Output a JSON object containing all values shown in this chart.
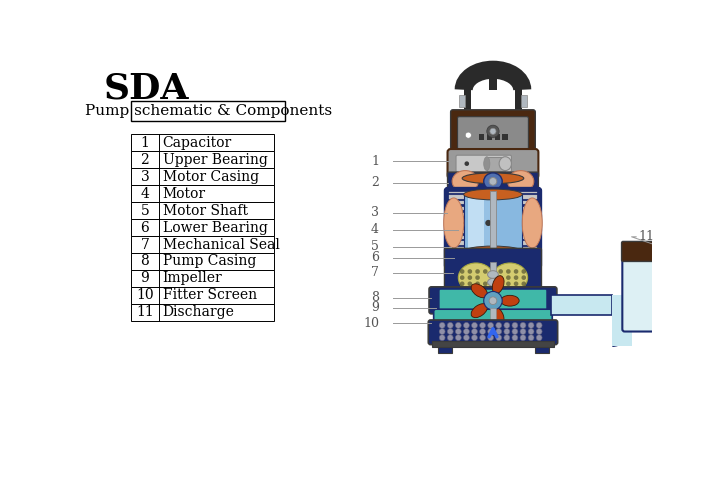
{
  "title": "SDA",
  "subtitle": "Pump schematic & Components",
  "components": [
    {
      "num": "1",
      "name": "Capacitor"
    },
    {
      "num": "2",
      "name": "Upper Bearing"
    },
    {
      "num": "3",
      "name": "Motor Casing"
    },
    {
      "num": "4",
      "name": "Motor"
    },
    {
      "num": "5",
      "name": "Motor Shaft"
    },
    {
      "num": "6",
      "name": "Lower Bearing"
    },
    {
      "num": "7",
      "name": "Mechanical Seal"
    },
    {
      "num": "8",
      "name": "Pump Casing"
    },
    {
      "num": "9",
      "name": "Impeller"
    },
    {
      "num": "10",
      "name": "Fitter Screen"
    },
    {
      "num": "11",
      "name": "Discharge"
    }
  ],
  "bg_color": "#ffffff",
  "title_fontsize": 26,
  "subtitle_fontsize": 11,
  "table_fontsize": 10,
  "title_color": "#000000",
  "table_text_color": "#000000",
  "table_border_color": "#000000",
  "subtitle_box_color": "#000000",
  "dark_gray": "#3a3a3a",
  "mid_gray": "#888888",
  "light_gray": "#c8c8c8",
  "silver": "#b0b8c0",
  "dark_blue": "#1a2a6e",
  "blue_light": "#7ab8e8",
  "cyan_light": "#b8e0e8",
  "orange_brn": "#c86020",
  "salmon": "#e8a880",
  "yellow_grn": "#d4cc70",
  "teal": "#40b8a8",
  "dark_brn": "#3a1a08",
  "rust": "#c04010",
  "black": "#111111",
  "handle_color": "#2a2a2a",
  "dark_brown": "#4a2810"
}
